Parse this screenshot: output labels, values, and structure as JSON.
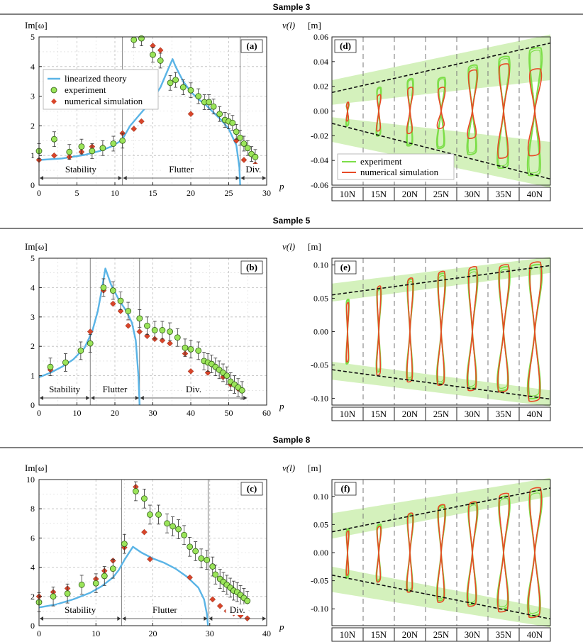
{
  "row_titles": [
    "Sample 3",
    "Sample 5",
    "Sample 8"
  ],
  "colors": {
    "theory": "#5ab4e6",
    "experiment": "#9be55a",
    "simulation": "#d8452a",
    "band": "#cdeeb0",
    "sim_orbit": "#e84a26",
    "exp_orbit": "#7cde48"
  },
  "chart_data": [
    {
      "id": "a",
      "type": "scatter",
      "panel_label": "(a)",
      "ylabel": "Im[ω]",
      "xlabel": "p",
      "xlim": [
        0,
        30
      ],
      "ylim": [
        0,
        5
      ],
      "xticks": [
        0,
        5,
        10,
        15,
        20,
        25,
        30
      ],
      "yticks": [
        0,
        1,
        2,
        3,
        4,
        5
      ],
      "legend": {
        "position": "top-left",
        "items": [
          "linearized theory",
          "experiment",
          "numerical simulation"
        ]
      },
      "regions": [
        {
          "label": "Stability",
          "from": 0,
          "to": 11
        },
        {
          "label": "Flutter",
          "from": 11,
          "to": 26.5
        },
        {
          "label": "Div.",
          "from": 26.5,
          "to": 30
        }
      ],
      "boundaries": [
        11,
        26.5
      ],
      "theory": [
        [
          0,
          0.85
        ],
        [
          3,
          0.9
        ],
        [
          6,
          1.02
        ],
        [
          8,
          1.15
        ],
        [
          9.5,
          1.3
        ],
        [
          10.5,
          1.45
        ],
        [
          11,
          1.55
        ],
        [
          12,
          2.0
        ],
        [
          13,
          2.3
        ],
        [
          14,
          2.6
        ],
        [
          15,
          2.9
        ],
        [
          16,
          3.3
        ],
        [
          17,
          3.9
        ],
        [
          17.6,
          4.25
        ],
        [
          18,
          4.0
        ],
        [
          19,
          3.5
        ],
        [
          20,
          3.15
        ],
        [
          21,
          2.9
        ],
        [
          22,
          2.7
        ],
        [
          23,
          2.45
        ],
        [
          24,
          2.2
        ],
        [
          25,
          1.9
        ],
        [
          26,
          1.35
        ],
        [
          26.4,
          0.6
        ],
        [
          26.5,
          0
        ]
      ],
      "experiment": [
        [
          0,
          1.15
        ],
        [
          2,
          1.55
        ],
        [
          4,
          1.12
        ],
        [
          5.6,
          1.3
        ],
        [
          7,
          1.15
        ],
        [
          8.4,
          1.25
        ],
        [
          9.8,
          1.4
        ],
        [
          11,
          1.5
        ],
        [
          12.5,
          4.9
        ],
        [
          13.5,
          4.95
        ],
        [
          15,
          4.4
        ],
        [
          16,
          4.2
        ],
        [
          17.3,
          3.45
        ],
        [
          18,
          3.55
        ],
        [
          19,
          3.3
        ],
        [
          20,
          3.2
        ],
        [
          21,
          3.0
        ],
        [
          21.8,
          2.8
        ],
        [
          22.4,
          2.8
        ],
        [
          23,
          2.65
        ],
        [
          23.8,
          2.4
        ],
        [
          24.5,
          2.2
        ],
        [
          25,
          2.15
        ],
        [
          25.5,
          2.1
        ],
        [
          26,
          1.8
        ],
        [
          26.5,
          1.6
        ],
        [
          27,
          1.4
        ],
        [
          27.5,
          1.25
        ],
        [
          28,
          1.05
        ],
        [
          28.5,
          0.95
        ]
      ],
      "experiment_err": 0.25,
      "simulation": [
        [
          0,
          0.85
        ],
        [
          2,
          1.0
        ],
        [
          4,
          0.95
        ],
        [
          5.6,
          1.12
        ],
        [
          7,
          1.3
        ],
        [
          8.4,
          1.28
        ],
        [
          9.8,
          1.4
        ],
        [
          11,
          1.75
        ],
        [
          12.5,
          1.9
        ],
        [
          13.5,
          2.15
        ],
        [
          15,
          4.7
        ],
        [
          16,
          4.55
        ],
        [
          20,
          2.4
        ],
        [
          26,
          1.5
        ],
        [
          27,
          0.85
        ],
        [
          28.5,
          0.7
        ]
      ]
    },
    {
      "id": "b",
      "type": "scatter",
      "panel_label": "(b)",
      "ylabel": "Im[ω]",
      "xlabel": "p",
      "xlim": [
        0,
        60
      ],
      "ylim": [
        0,
        5
      ],
      "xticks": [
        0,
        10,
        20,
        30,
        40,
        50,
        60
      ],
      "yticks": [
        0,
        1,
        2,
        3,
        4,
        5
      ],
      "regions": [
        {
          "label": "Stability",
          "from": 0,
          "to": 13.5
        },
        {
          "label": "Flutter",
          "from": 13.5,
          "to": 26.5
        },
        {
          "label": "Div.",
          "from": 26.5,
          "to": 55
        }
      ],
      "boundaries": [
        13.5,
        26.5
      ],
      "theory": [
        [
          0,
          0.95
        ],
        [
          3,
          1.1
        ],
        [
          6,
          1.3
        ],
        [
          9,
          1.55
        ],
        [
          12,
          1.95
        ],
        [
          14,
          2.5
        ],
        [
          15.5,
          3.2
        ],
        [
          16.5,
          3.9
        ],
        [
          17.5,
          4.65
        ],
        [
          19,
          4.1
        ],
        [
          21,
          3.6
        ],
        [
          23,
          3.2
        ],
        [
          24.5,
          2.8
        ],
        [
          25.5,
          2.2
        ],
        [
          26.2,
          1.0
        ],
        [
          26.5,
          0
        ]
      ],
      "experiment": [
        [
          3,
          1.3
        ],
        [
          7,
          1.45
        ],
        [
          11,
          1.85
        ],
        [
          13.5,
          2.1
        ],
        [
          17,
          4.0
        ],
        [
          19.5,
          3.9
        ],
        [
          21.5,
          3.55
        ],
        [
          23.5,
          3.2
        ],
        [
          26.5,
          2.95
        ],
        [
          28.5,
          2.7
        ],
        [
          30.5,
          2.55
        ],
        [
          32.5,
          2.55
        ],
        [
          34.5,
          2.5
        ],
        [
          36.5,
          2.3
        ],
        [
          38.5,
          1.95
        ],
        [
          40,
          1.9
        ],
        [
          42,
          1.85
        ],
        [
          43.5,
          1.5
        ],
        [
          44.5,
          1.45
        ],
        [
          45.5,
          1.4
        ],
        [
          46.5,
          1.3
        ],
        [
          47.5,
          1.2
        ],
        [
          48.5,
          1.1
        ],
        [
          49.5,
          1.0
        ],
        [
          50.5,
          0.8
        ],
        [
          51.5,
          0.7
        ],
        [
          52.5,
          0.6
        ],
        [
          53.5,
          0.5
        ]
      ],
      "experiment_err": 0.3,
      "simulation": [
        [
          3,
          1.2
        ],
        [
          7,
          1.42
        ],
        [
          11,
          1.85
        ],
        [
          13.5,
          2.5
        ],
        [
          17,
          3.9
        ],
        [
          19.5,
          3.45
        ],
        [
          21.5,
          3.2
        ],
        [
          23.5,
          2.7
        ],
        [
          26.5,
          2.5
        ],
        [
          28.5,
          2.35
        ],
        [
          30.5,
          2.25
        ],
        [
          32.5,
          2.2
        ],
        [
          34.5,
          2.1
        ],
        [
          38.5,
          1.75
        ],
        [
          40,
          1.15
        ],
        [
          44.5,
          1.1
        ],
        [
          48.5,
          0.95
        ],
        [
          50.5,
          0.7
        ],
        [
          52.5,
          0.55
        ]
      ]
    },
    {
      "id": "c",
      "type": "scatter",
      "panel_label": "(c)",
      "ylabel": "Im[ω]",
      "xlabel": "p",
      "xlim": [
        0,
        40
      ],
      "ylim": [
        0,
        10
      ],
      "xticks": [
        0,
        10,
        20,
        30,
        40
      ],
      "yticks": [
        0,
        2,
        4,
        6,
        8,
        10
      ],
      "regions": [
        {
          "label": "Stability",
          "from": 0,
          "to": 14.5
        },
        {
          "label": "Flutter",
          "from": 14.5,
          "to": 29.7
        },
        {
          "label": "Div.",
          "from": 29.7,
          "to": 40
        }
      ],
      "boundaries": [
        14.5,
        29.7
      ],
      "theory": [
        [
          0,
          1.25
        ],
        [
          3,
          1.45
        ],
        [
          6,
          1.8
        ],
        [
          9,
          2.25
        ],
        [
          11,
          2.7
        ],
        [
          13,
          3.3
        ],
        [
          14,
          3.8
        ],
        [
          15,
          4.5
        ],
        [
          16.5,
          5.4
        ],
        [
          18,
          5.0
        ],
        [
          20,
          4.6
        ],
        [
          22,
          4.3
        ],
        [
          24,
          3.9
        ],
        [
          26,
          3.35
        ],
        [
          28,
          2.6
        ],
        [
          29,
          1.8
        ],
        [
          29.5,
          0.8
        ],
        [
          29.7,
          0
        ]
      ],
      "experiment": [
        [
          0,
          1.6
        ],
        [
          2.5,
          2.0
        ],
        [
          5,
          2.2
        ],
        [
          7.5,
          2.8
        ],
        [
          10,
          2.9
        ],
        [
          11.5,
          3.4
        ],
        [
          13,
          3.9
        ],
        [
          15,
          5.6
        ],
        [
          17,
          9.2
        ],
        [
          18.5,
          8.7
        ],
        [
          19.5,
          7.6
        ],
        [
          21,
          7.6
        ],
        [
          22.5,
          7.0
        ],
        [
          23.5,
          6.8
        ],
        [
          24.5,
          6.6
        ],
        [
          25.5,
          6.2
        ],
        [
          26.5,
          5.4
        ],
        [
          27.5,
          5.1
        ],
        [
          28.5,
          4.6
        ],
        [
          29.5,
          4.5
        ],
        [
          30.5,
          4.05
        ],
        [
          31,
          3.5
        ],
        [
          31.8,
          3.2
        ],
        [
          32.4,
          3.0
        ],
        [
          33,
          2.8
        ],
        [
          33.6,
          2.6
        ],
        [
          34.2,
          2.4
        ],
        [
          34.8,
          2.3
        ],
        [
          35.4,
          2.1
        ],
        [
          36,
          1.9
        ],
        [
          36.6,
          1.7
        ]
      ],
      "experiment_err": 0.65,
      "simulation": [
        [
          0,
          2.0
        ],
        [
          2.5,
          2.3
        ],
        [
          5,
          2.55
        ],
        [
          7.5,
          2.8
        ],
        [
          10,
          3.2
        ],
        [
          11.5,
          3.75
        ],
        [
          13,
          4.45
        ],
        [
          15,
          5.35
        ],
        [
          17,
          9.5
        ],
        [
          18.5,
          6.4
        ],
        [
          19.5,
          4.55
        ],
        [
          26.5,
          3.3
        ],
        [
          30.5,
          1.8
        ],
        [
          31.8,
          1.35
        ],
        [
          33,
          1.0
        ],
        [
          34.2,
          0.85
        ],
        [
          35.4,
          0.7
        ],
        [
          36.6,
          0.5
        ]
      ]
    },
    {
      "id": "d",
      "type": "line",
      "panel_label": "(d)",
      "ylabel": "v(l)",
      "yunit": "[m]",
      "ylim": [
        -0.06,
        0.06
      ],
      "yticks": [
        -0.06,
        -0.04,
        -0.02,
        0.0,
        0.02,
        0.04,
        0.06
      ],
      "ytick_labels": [
        "-0.06",
        "-0.04",
        "-0.02",
        "0.00",
        "0.02",
        "0.04",
        "0.06"
      ],
      "loads": [
        "10N",
        "15N",
        "20N",
        "25N",
        "30N",
        "35N",
        "40N"
      ],
      "legend": {
        "position": "bottom-left",
        "items": [
          "experiment",
          "numerical simulation"
        ]
      },
      "band_upper": [
        [
          0.005,
          0.025
        ],
        [
          0.025,
          0.062
        ]
      ],
      "band_lower": [
        [
          -0.005,
          -0.025
        ],
        [
          -0.025,
          -0.062
        ]
      ],
      "dashed_upper": [
        0.015,
        0.055
      ],
      "dashed_lower": [
        -0.01,
        -0.055
      ],
      "sim_amplitude": [
        [
          -0.008,
          0.007
        ],
        [
          -0.016,
          0.013
        ],
        [
          -0.018,
          0.019
        ],
        [
          -0.014,
          0.019
        ],
        [
          -0.022,
          0.033
        ],
        [
          -0.038,
          0.038
        ],
        [
          -0.036,
          0.034
        ]
      ],
      "exp_amplitude": [
        [
          -0.012,
          0.006
        ],
        [
          -0.02,
          0.019
        ],
        [
          -0.028,
          0.026
        ],
        [
          -0.03,
          0.027
        ],
        [
          -0.035,
          0.037
        ],
        [
          -0.046,
          0.044
        ],
        [
          -0.052,
          0.051
        ]
      ]
    },
    {
      "id": "e",
      "type": "line",
      "panel_label": "(e)",
      "ylabel": "v(l)",
      "yunit": "[m]",
      "ylim": [
        -0.11,
        0.11
      ],
      "yticks": [
        -0.1,
        -0.05,
        0.0,
        0.05,
        0.1
      ],
      "ytick_labels": [
        "-0.10",
        "-0.05",
        "0.00",
        "0.05",
        "0.10"
      ],
      "loads": [
        "10N",
        "15N",
        "20N",
        "25N",
        "30N",
        "35N",
        "40N"
      ],
      "band_upper": [
        [
          0.045,
          0.072
        ],
        [
          0.088,
          0.112
        ]
      ],
      "band_lower": [
        [
          -0.045,
          -0.072
        ],
        [
          -0.088,
          -0.112
        ]
      ],
      "dashed_upper": [
        0.055,
        0.099
      ],
      "dashed_lower": [
        -0.057,
        -0.101
      ],
      "sim_amplitude": [
        [
          -0.045,
          0.043
        ],
        [
          -0.065,
          0.068
        ],
        [
          -0.075,
          0.08
        ],
        [
          -0.08,
          0.09
        ],
        [
          -0.088,
          0.097
        ],
        [
          -0.09,
          0.1
        ],
        [
          -0.104,
          0.104
        ]
      ],
      "exp_amplitude": [
        [
          -0.048,
          0.048
        ],
        [
          -0.06,
          0.065
        ],
        [
          -0.072,
          0.078
        ],
        [
          -0.078,
          0.087
        ],
        [
          -0.085,
          0.093
        ],
        [
          -0.088,
          0.097
        ],
        [
          -0.1,
          0.1
        ]
      ]
    },
    {
      "id": "f",
      "type": "line",
      "panel_label": "(f)",
      "ylabel": "v(l)",
      "yunit": "[m]",
      "ylim": [
        -0.13,
        0.13
      ],
      "yticks": [
        -0.1,
        -0.05,
        0.0,
        0.05,
        0.1
      ],
      "ytick_labels": [
        "-0.10",
        "-0.05",
        "0.00",
        "0.05",
        "0.10"
      ],
      "loads": [
        "10N",
        "15N",
        "20N",
        "25N",
        "30N",
        "35N",
        "40N"
      ],
      "band_upper": [
        [
          0.025,
          0.07
        ],
        [
          0.1,
          0.133
        ]
      ],
      "band_lower": [
        [
          -0.025,
          -0.07
        ],
        [
          -0.1,
          -0.133
        ]
      ],
      "dashed_upper": [
        0.037,
        0.115
      ],
      "dashed_lower": [
        -0.04,
        -0.118
      ],
      "sim_amplitude": [
        [
          -0.04,
          0.038
        ],
        [
          -0.052,
          0.046
        ],
        [
          -0.07,
          0.07
        ],
        [
          -0.088,
          0.085
        ],
        [
          -0.095,
          0.09
        ],
        [
          -0.105,
          0.105
        ],
        [
          -0.115,
          0.115
        ]
      ],
      "exp_amplitude": [
        [
          -0.045,
          0.042
        ],
        [
          -0.05,
          0.05
        ],
        [
          -0.068,
          0.068
        ],
        [
          -0.085,
          0.083
        ],
        [
          -0.092,
          0.088
        ],
        [
          -0.1,
          0.1
        ],
        [
          -0.112,
          0.11
        ]
      ]
    }
  ]
}
